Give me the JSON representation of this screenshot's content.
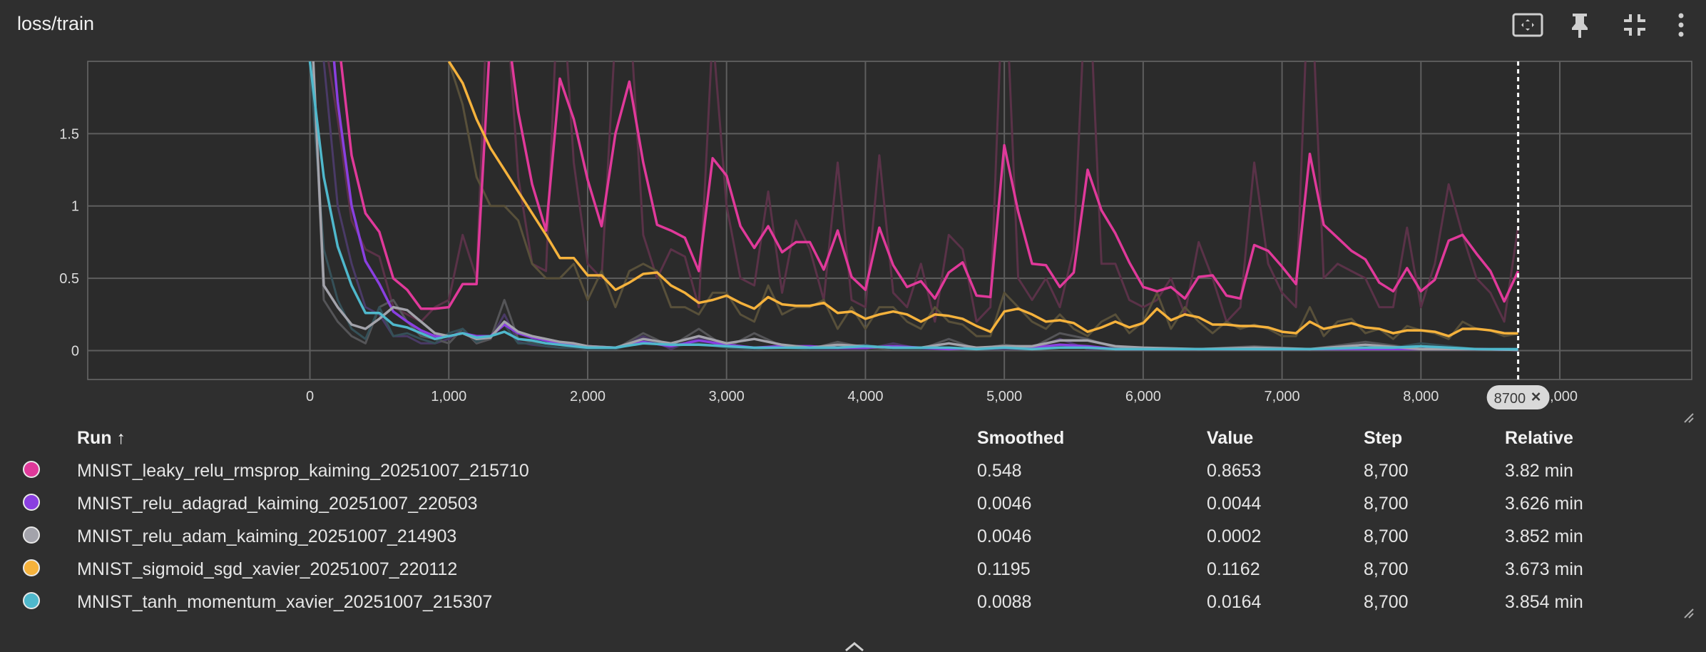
{
  "card": {
    "title": "loss/train",
    "toolbar": [
      {
        "name": "fit-domain-button",
        "icon": "fit-screen-icon"
      },
      {
        "name": "pin-button",
        "icon": "pin-icon"
      },
      {
        "name": "collapse-button",
        "icon": "collapse-icon"
      },
      {
        "name": "more-options-button",
        "icon": "more-vert-icon"
      }
    ]
  },
  "chart_data": {
    "type": "line",
    "title": "",
    "xlabel": "",
    "ylabel": "",
    "xlim": [
      -1600,
      9950
    ],
    "ylim": [
      -0.2,
      2.0
    ],
    "grid": true,
    "x_ticks": [
      0,
      1000,
      2000,
      3000,
      4000,
      5000,
      6000,
      7000,
      8000,
      9000
    ],
    "x_tick_labels": [
      "0",
      "1,000",
      "2,000",
      "3,000",
      "4,000",
      "5,000",
      "6,000",
      "7,000",
      "8,000",
      "9,000"
    ],
    "y_ticks": [
      0,
      0.5,
      1,
      1.5
    ],
    "y_tick_labels": [
      "0",
      "0.5",
      "1",
      "1.5"
    ],
    "cursor_step": 8700,
    "cursor_label": "8700",
    "series": [
      {
        "name": "MNIST_leaky_relu_rmsprop_kaiming_20251007_215710",
        "color": "#e0399a",
        "raw_color": "#5a3248",
        "x": [
          0,
          100,
          200,
          300,
          400,
          500,
          600,
          700,
          800,
          900,
          1000,
          1100,
          1200,
          1300,
          1400,
          1500,
          1600,
          1700,
          1800,
          1900,
          2000,
          2100,
          2200,
          2300,
          2400,
          2500,
          2600,
          2700,
          2800,
          2900,
          3000,
          3100,
          3200,
          3300,
          3400,
          3500,
          3600,
          3700,
          3800,
          3900,
          4000,
          4100,
          4200,
          4300,
          4400,
          4500,
          4600,
          4700,
          4800,
          4900,
          5000,
          5100,
          5200,
          5300,
          5400,
          5500,
          5600,
          5700,
          5800,
          5900,
          6000,
          6100,
          6200,
          6300,
          6400,
          6500,
          6600,
          6700,
          6800,
          6900,
          7000,
          7100,
          7200,
          7300,
          7400,
          7500,
          7600,
          7700,
          7800,
          7900,
          8000,
          8100,
          8200,
          8300,
          8400,
          8500,
          8600,
          8700
        ],
        "smoothed": [
          3.0,
          2.6,
          2.2,
          1.35,
          0.95,
          0.82,
          0.5,
          0.42,
          0.29,
          0.29,
          0.3,
          0.46,
          0.46,
          2.2,
          2.4,
          1.65,
          1.15,
          0.83,
          1.88,
          1.6,
          1.18,
          0.86,
          1.5,
          1.86,
          1.3,
          0.87,
          0.83,
          0.78,
          0.55,
          1.33,
          1.21,
          0.86,
          0.71,
          0.86,
          0.68,
          0.75,
          0.75,
          0.56,
          0.83,
          0.51,
          0.42,
          0.85,
          0.59,
          0.44,
          0.48,
          0.36,
          0.54,
          0.61,
          0.38,
          0.37,
          1.42,
          0.96,
          0.6,
          0.59,
          0.44,
          0.54,
          1.25,
          0.97,
          0.81,
          0.61,
          0.44,
          0.41,
          0.44,
          0.36,
          0.51,
          0.52,
          0.38,
          0.36,
          0.73,
          0.69,
          0.58,
          0.46,
          1.36,
          0.87,
          0.78,
          0.69,
          0.63,
          0.47,
          0.41,
          0.57,
          0.41,
          0.49,
          0.76,
          0.8,
          0.67,
          0.55,
          0.34,
          0.55
        ],
        "raw": [
          3.0,
          2.2,
          1.6,
          0.9,
          0.7,
          0.65,
          0.3,
          0.25,
          0.2,
          0.3,
          0.35,
          0.8,
          0.5,
          3.0,
          2.6,
          1.2,
          0.6,
          0.55,
          2.8,
          1.3,
          0.6,
          0.5,
          2.2,
          2.4,
          0.8,
          0.5,
          0.7,
          0.65,
          0.3,
          2.2,
          1.0,
          0.5,
          0.45,
          1.1,
          0.4,
          0.9,
          0.7,
          0.35,
          1.3,
          0.35,
          0.3,
          1.35,
          0.4,
          0.3,
          0.6,
          0.2,
          0.8,
          0.7,
          0.2,
          0.3,
          2.8,
          0.5,
          0.35,
          0.5,
          0.3,
          0.7,
          2.8,
          0.6,
          0.6,
          0.35,
          0.3,
          0.35,
          0.5,
          0.25,
          0.75,
          0.5,
          0.2,
          0.3,
          1.3,
          0.6,
          0.4,
          0.3,
          2.8,
          0.5,
          0.6,
          0.55,
          0.5,
          0.3,
          0.3,
          0.85,
          0.3,
          0.6,
          1.15,
          0.8,
          0.5,
          0.4,
          0.2,
          0.86
        ]
      },
      {
        "name": "MNIST_relu_adagrad_kaiming_20251007_220503",
        "color": "#8a3fe0",
        "raw_color": "#4a3a66",
        "x": [
          0,
          100,
          200,
          300,
          400,
          500,
          600,
          700,
          800,
          900,
          1000,
          1100,
          1200,
          1300,
          1400,
          1500,
          1600,
          1700,
          1800,
          1900,
          2000,
          2200,
          2400,
          2600,
          2800,
          3000,
          3200,
          3400,
          3600,
          3800,
          4000,
          4200,
          4400,
          4600,
          4800,
          5000,
          5200,
          5400,
          5600,
          5800,
          6000,
          6400,
          6800,
          7200,
          7600,
          8000,
          8400,
          8700
        ],
        "smoothed": [
          3.0,
          2.8,
          1.72,
          1.0,
          0.62,
          0.46,
          0.27,
          0.2,
          0.14,
          0.1,
          0.1,
          0.12,
          0.1,
          0.1,
          0.18,
          0.12,
          0.09,
          0.07,
          0.05,
          0.04,
          0.03,
          0.02,
          0.06,
          0.03,
          0.07,
          0.04,
          0.02,
          0.03,
          0.03,
          0.02,
          0.02,
          0.03,
          0.02,
          0.01,
          0.02,
          0.02,
          0.02,
          0.04,
          0.03,
          0.01,
          0.01,
          0.01,
          0.01,
          0.01,
          0.01,
          0.01,
          0.01,
          0.0046
        ],
        "raw": [
          3.0,
          2.0,
          1.0,
          0.6,
          0.3,
          0.25,
          0.1,
          0.1,
          0.05,
          0.05,
          0.08,
          0.15,
          0.05,
          0.08,
          0.25,
          0.06,
          0.04,
          0.03,
          0.02,
          0.02,
          0.01,
          0.01,
          0.1,
          0.01,
          0.09,
          0.02,
          0.01,
          0.04,
          0.01,
          0.01,
          0.01,
          0.05,
          0.01,
          0.01,
          0.01,
          0.01,
          0.01,
          0.08,
          0.01,
          0.01,
          0.01,
          0.01,
          0.02,
          0.01,
          0.01,
          0.01,
          0.01,
          0.0044
        ]
      },
      {
        "name": "MNIST_relu_adam_kaiming_20251007_214903",
        "color": "#a3a3ab",
        "raw_color": "#555558",
        "x": [
          0,
          100,
          200,
          300,
          400,
          500,
          600,
          700,
          800,
          900,
          1000,
          1100,
          1200,
          1300,
          1400,
          1500,
          1600,
          1700,
          1800,
          1900,
          2000,
          2200,
          2400,
          2600,
          2800,
          3000,
          3200,
          3400,
          3600,
          3800,
          4000,
          4200,
          4400,
          4600,
          4800,
          5000,
          5200,
          5400,
          5600,
          5800,
          6000,
          6400,
          6800,
          7200,
          7600,
          8000,
          8400,
          8700
        ],
        "smoothed": [
          2.5,
          0.45,
          0.3,
          0.18,
          0.15,
          0.22,
          0.3,
          0.28,
          0.2,
          0.12,
          0.1,
          0.12,
          0.08,
          0.09,
          0.2,
          0.13,
          0.1,
          0.08,
          0.06,
          0.05,
          0.03,
          0.02,
          0.08,
          0.05,
          0.1,
          0.05,
          0.08,
          0.04,
          0.02,
          0.04,
          0.03,
          0.02,
          0.02,
          0.05,
          0.02,
          0.03,
          0.03,
          0.07,
          0.07,
          0.03,
          0.02,
          0.01,
          0.02,
          0.01,
          0.04,
          0.01,
          0.01,
          0.0046
        ],
        "raw": [
          2.5,
          0.35,
          0.2,
          0.1,
          0.05,
          0.3,
          0.35,
          0.2,
          0.1,
          0.08,
          0.05,
          0.15,
          0.05,
          0.08,
          0.35,
          0.08,
          0.06,
          0.05,
          0.04,
          0.03,
          0.02,
          0.01,
          0.12,
          0.03,
          0.15,
          0.02,
          0.12,
          0.03,
          0.01,
          0.06,
          0.02,
          0.01,
          0.01,
          0.08,
          0.01,
          0.04,
          0.02,
          0.12,
          0.08,
          0.02,
          0.01,
          0.01,
          0.03,
          0.01,
          0.06,
          0.01,
          0.01,
          0.0002
        ]
      },
      {
        "name": "MNIST_sigmoid_sgd_xavier_20251007_220112",
        "color": "#f5b23c",
        "raw_color": "#58503a",
        "x": [
          1000,
          1100,
          1200,
          1300,
          1400,
          1500,
          1600,
          1700,
          1800,
          1900,
          2000,
          2100,
          2200,
          2300,
          2400,
          2500,
          2600,
          2700,
          2800,
          2900,
          3000,
          3100,
          3200,
          3300,
          3400,
          3500,
          3600,
          3700,
          3800,
          3900,
          4000,
          4100,
          4200,
          4300,
          4400,
          4500,
          4600,
          4700,
          4800,
          4900,
          5000,
          5100,
          5200,
          5300,
          5400,
          5500,
          5600,
          5700,
          5800,
          5900,
          6000,
          6100,
          6200,
          6300,
          6400,
          6500,
          6600,
          6700,
          6800,
          6900,
          7000,
          7100,
          7200,
          7300,
          7400,
          7500,
          7600,
          7700,
          7800,
          7900,
          8000,
          8100,
          8200,
          8300,
          8400,
          8500,
          8600,
          8700
        ],
        "smoothed": [
          2.0,
          1.85,
          1.6,
          1.4,
          1.25,
          1.1,
          0.95,
          0.8,
          0.64,
          0.64,
          0.52,
          0.52,
          0.42,
          0.47,
          0.53,
          0.54,
          0.45,
          0.4,
          0.33,
          0.35,
          0.38,
          0.33,
          0.29,
          0.37,
          0.32,
          0.31,
          0.31,
          0.33,
          0.26,
          0.27,
          0.22,
          0.25,
          0.27,
          0.25,
          0.2,
          0.25,
          0.24,
          0.22,
          0.17,
          0.13,
          0.27,
          0.29,
          0.25,
          0.2,
          0.21,
          0.19,
          0.13,
          0.16,
          0.2,
          0.16,
          0.19,
          0.29,
          0.21,
          0.25,
          0.23,
          0.18,
          0.18,
          0.17,
          0.17,
          0.16,
          0.13,
          0.12,
          0.2,
          0.15,
          0.17,
          0.19,
          0.16,
          0.15,
          0.12,
          0.14,
          0.14,
          0.13,
          0.1,
          0.15,
          0.15,
          0.14,
          0.12,
          0.1195
        ],
        "raw": [
          2.0,
          1.7,
          1.2,
          1.0,
          1.0,
          0.9,
          0.6,
          0.5,
          0.5,
          0.6,
          0.35,
          0.55,
          0.3,
          0.55,
          0.6,
          0.55,
          0.3,
          0.3,
          0.25,
          0.4,
          0.4,
          0.25,
          0.2,
          0.45,
          0.25,
          0.3,
          0.3,
          0.35,
          0.15,
          0.3,
          0.15,
          0.3,
          0.3,
          0.2,
          0.15,
          0.3,
          0.2,
          0.18,
          0.1,
          0.1,
          0.4,
          0.3,
          0.2,
          0.15,
          0.25,
          0.15,
          0.1,
          0.2,
          0.25,
          0.12,
          0.2,
          0.4,
          0.15,
          0.3,
          0.2,
          0.12,
          0.2,
          0.15,
          0.18,
          0.15,
          0.1,
          0.1,
          0.3,
          0.1,
          0.2,
          0.22,
          0.12,
          0.15,
          0.08,
          0.17,
          0.14,
          0.12,
          0.08,
          0.2,
          0.15,
          0.14,
          0.1,
          0.1162
        ]
      },
      {
        "name": "MNIST_tanh_momentum_xavier_20251007_215307",
        "color": "#4fb8cc",
        "raw_color": "#355058",
        "x": [
          0,
          100,
          200,
          300,
          400,
          500,
          600,
          700,
          800,
          900,
          1000,
          1100,
          1200,
          1300,
          1400,
          1500,
          1600,
          1700,
          1800,
          1900,
          2000,
          2200,
          2400,
          2600,
          2800,
          3000,
          3200,
          3400,
          3600,
          3800,
          4000,
          4200,
          4400,
          4600,
          4800,
          5000,
          5200,
          5400,
          5600,
          5800,
          6000,
          6400,
          6800,
          7200,
          7600,
          7800,
          8000,
          8400,
          8700
        ],
        "smoothed": [
          2.0,
          1.2,
          0.72,
          0.45,
          0.26,
          0.26,
          0.18,
          0.16,
          0.12,
          0.08,
          0.1,
          0.12,
          0.09,
          0.1,
          0.13,
          0.08,
          0.07,
          0.05,
          0.04,
          0.03,
          0.02,
          0.02,
          0.05,
          0.04,
          0.04,
          0.03,
          0.02,
          0.02,
          0.02,
          0.02,
          0.03,
          0.02,
          0.02,
          0.02,
          0.01,
          0.02,
          0.01,
          0.02,
          0.02,
          0.01,
          0.01,
          0.01,
          0.01,
          0.01,
          0.02,
          0.02,
          0.03,
          0.01,
          0.0088
        ],
        "raw": [
          2.0,
          0.7,
          0.35,
          0.15,
          0.08,
          0.3,
          0.1,
          0.12,
          0.08,
          0.05,
          0.12,
          0.15,
          0.06,
          0.1,
          0.18,
          0.05,
          0.05,
          0.03,
          0.02,
          0.02,
          0.01,
          0.01,
          0.07,
          0.03,
          0.05,
          0.02,
          0.01,
          0.02,
          0.01,
          0.02,
          0.04,
          0.01,
          0.01,
          0.02,
          0.01,
          0.02,
          0.01,
          0.03,
          0.02,
          0.01,
          0.01,
          0.01,
          0.01,
          0.01,
          0.04,
          0.02,
          0.05,
          0.01,
          0.0164
        ]
      }
    ]
  },
  "legend": {
    "headers": {
      "run": "Run ↑",
      "smoothed": "Smoothed",
      "value": "Value",
      "step": "Step",
      "relative": "Relative"
    },
    "rows": [
      {
        "run": "MNIST_leaky_relu_rmsprop_kaiming_20251007_215710",
        "smoothed": "0.548",
        "value": "0.8653",
        "step": "8,700",
        "relative": "3.82 min",
        "color": "#e0399a"
      },
      {
        "run": "MNIST_relu_adagrad_kaiming_20251007_220503",
        "smoothed": "0.0046",
        "value": "0.0044",
        "step": "8,700",
        "relative": "3.626 min",
        "color": "#8a3fe0"
      },
      {
        "run": "MNIST_relu_adam_kaiming_20251007_214903",
        "smoothed": "0.0046",
        "value": "0.0002",
        "step": "8,700",
        "relative": "3.852 min",
        "color": "#a3a3ab"
      },
      {
        "run": "MNIST_sigmoid_sgd_xavier_20251007_220112",
        "smoothed": "0.1195",
        "value": "0.1162",
        "step": "8,700",
        "relative": "3.673 min",
        "color": "#f5b23c"
      },
      {
        "run": "MNIST_tanh_momentum_xavier_20251007_215307",
        "smoothed": "0.0088",
        "value": "0.0164",
        "step": "8,700",
        "relative": "3.854 min",
        "color": "#4fb8cc"
      }
    ]
  }
}
